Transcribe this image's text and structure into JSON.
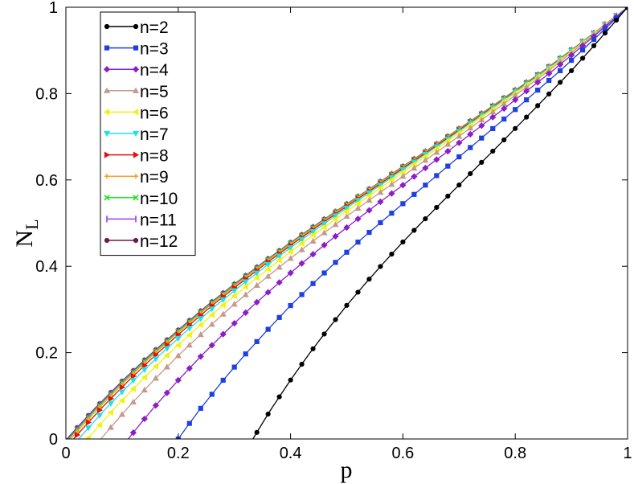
{
  "chart_data": {
    "type": "line",
    "title": "",
    "xlabel": "p",
    "ylabel": "N",
    "ylabel_subscript": "L",
    "xlim": [
      0,
      1
    ],
    "ylim": [
      0,
      1
    ],
    "grid": false,
    "legend_placement": "top-left",
    "x_ticks": [
      0,
      0.2,
      0.4,
      0.6,
      0.8,
      1
    ],
    "x_tick_labels": [
      "0",
      "0.2",
      "0.4",
      "0.6",
      "0.8",
      "1"
    ],
    "y_ticks": [
      0,
      0.2,
      0.4,
      0.6,
      0.8,
      1
    ],
    "y_tick_labels": [
      "0",
      "0.2",
      "0.4",
      "0.6",
      "0.8",
      "1"
    ],
    "curve_points": [
      [
        0,
        0
      ],
      [
        0.02,
        0.029
      ],
      [
        0.05,
        0.071
      ],
      [
        0.1,
        0.136
      ],
      [
        0.15,
        0.197
      ],
      [
        0.2,
        0.254
      ],
      [
        0.25,
        0.309
      ],
      [
        0.3,
        0.36
      ],
      [
        0.35,
        0.409
      ],
      [
        0.4,
        0.456
      ],
      [
        0.45,
        0.501
      ],
      [
        0.5,
        0.545
      ],
      [
        0.55,
        0.588
      ],
      [
        0.6,
        0.632
      ],
      [
        0.65,
        0.675
      ],
      [
        0.7,
        0.719
      ],
      [
        0.75,
        0.763
      ],
      [
        0.8,
        0.808
      ],
      [
        0.85,
        0.853
      ],
      [
        0.9,
        0.901
      ],
      [
        0.95,
        0.95
      ],
      [
        1,
        1
      ]
    ],
    "series": [
      {
        "name": "n=2",
        "p_start": 0.333,
        "color": "#000000",
        "marker": "circle"
      },
      {
        "name": "n=3",
        "p_start": 0.2,
        "color": "#1f3fe0",
        "marker": "square"
      },
      {
        "name": "n=4",
        "p_start": 0.111,
        "color": "#8a1fc9",
        "marker": "diamond"
      },
      {
        "name": "n=5",
        "p_start": 0.0625,
        "color": "#c49a8c",
        "marker": "triangle-up"
      },
      {
        "name": "n=6",
        "p_start": 0.0385,
        "color": "#f2f20a",
        "marker": "triangle-left"
      },
      {
        "name": "n=7",
        "p_start": 0.0227,
        "color": "#22e0e0",
        "marker": "triangle-down"
      },
      {
        "name": "n=8",
        "p_start": 0.0137,
        "color": "#e60f0f",
        "marker": "triangle-right"
      },
      {
        "name": "n=9",
        "p_start": 0.0083,
        "color": "#f5a51e",
        "marker": "plus"
      },
      {
        "name": "n=10",
        "p_start": 0.005,
        "color": "#1fe01f",
        "marker": "x"
      },
      {
        "name": "n=11",
        "p_start": 0.003,
        "color": "#9a3fe6",
        "marker": "vline"
      },
      {
        "name": "n=12",
        "p_start": 0.0018,
        "color": "#6b1a4a",
        "marker": "circle"
      }
    ]
  }
}
